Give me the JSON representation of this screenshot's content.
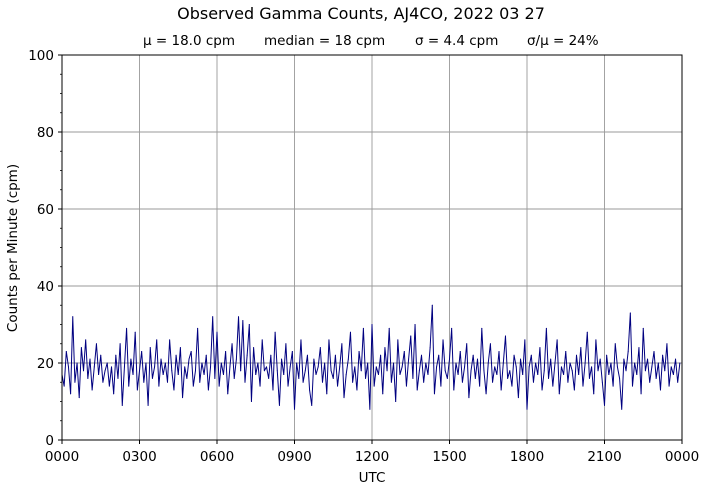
{
  "chart_data": {
    "type": "line",
    "title": "Observed Gamma Counts, AJ4CO, 2022 03 27",
    "subtitle": {
      "mean": "μ = 18.0 cpm",
      "median": "median = 18 cpm",
      "sigma": "σ = 4.4 cpm",
      "cv": "σ/μ = 24%"
    },
    "xlabel": "UTC",
    "ylabel": "Counts per Minute (cpm)",
    "xlim_minutes": [
      0,
      1440
    ],
    "ylim": [
      0,
      100
    ],
    "x_ticks": [
      "0000",
      "0300",
      "0600",
      "0900",
      "1200",
      "1500",
      "1800",
      "2100",
      "0000"
    ],
    "y_ticks": [
      "0",
      "20",
      "40",
      "60",
      "80",
      "100"
    ],
    "y_minor_step": 5,
    "grid": true,
    "line_color": "#000080",
    "sample_interval_minutes": 5,
    "values": [
      17,
      14,
      23,
      19,
      12,
      32,
      15,
      20,
      11,
      24,
      18,
      26,
      16,
      21,
      13,
      19,
      25,
      17,
      22,
      15,
      18,
      20,
      14,
      19,
      12,
      22,
      16,
      25,
      9,
      19,
      29,
      14,
      21,
      17,
      28,
      13,
      18,
      23,
      15,
      20,
      9,
      24,
      16,
      19,
      26,
      14,
      21,
      17,
      20,
      15,
      26,
      18,
      13,
      22,
      17,
      24,
      11,
      19,
      16,
      21,
      23,
      14,
      18,
      29,
      15,
      20,
      17,
      22,
      13,
      19,
      32,
      16,
      28,
      14,
      20,
      17,
      23,
      12,
      19,
      25,
      16,
      21,
      32,
      18,
      31,
      15,
      22,
      30,
      10,
      24,
      17,
      20,
      14,
      26,
      18,
      19,
      16,
      22,
      13,
      28,
      18,
      9,
      21,
      17,
      25,
      14,
      19,
      23,
      8,
      20,
      16,
      26,
      15,
      18,
      22,
      13,
      9,
      21,
      17,
      19,
      24,
      15,
      20,
      12,
      26,
      18,
      16,
      22,
      14,
      19,
      25,
      11,
      17,
      21,
      28,
      15,
      19,
      13,
      23,
      18,
      29,
      16,
      20,
      8,
      30,
      14,
      19,
      17,
      22,
      12,
      24,
      18,
      29,
      15,
      20,
      10,
      26,
      17,
      19,
      23,
      14,
      21,
      27,
      16,
      30,
      13,
      18,
      22,
      15,
      20,
      17,
      24,
      35,
      12,
      19,
      22,
      14,
      26,
      18,
      16,
      21,
      29,
      13,
      20,
      17,
      23,
      15,
      19,
      25,
      11,
      18,
      22,
      16,
      21,
      14,
      29,
      18,
      12,
      20,
      25,
      15,
      19,
      17,
      23,
      13,
      20,
      27,
      16,
      18,
      14,
      22,
      19,
      11,
      21,
      17,
      26,
      8,
      19,
      22,
      15,
      20,
      17,
      24,
      13,
      18,
      29,
      16,
      21,
      14,
      20,
      26,
      12,
      19,
      17,
      23,
      15,
      20,
      18,
      13,
      22,
      17,
      24,
      14,
      20,
      28,
      16,
      19,
      12,
      26,
      18,
      21,
      15,
      9,
      22,
      17,
      20,
      14,
      25,
      19,
      16,
      8,
      21,
      18,
      23,
      33,
      14,
      20,
      17,
      24,
      12,
      29,
      18,
      21,
      15,
      19,
      23,
      16,
      20,
      13,
      22,
      18,
      25,
      14,
      19,
      17,
      21,
      15,
      20
    ]
  }
}
